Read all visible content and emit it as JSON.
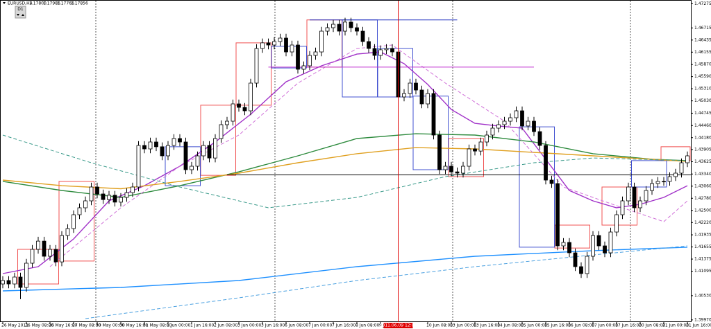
{
  "header": {
    "symbol": "EURUSD,H4",
    "quote": [
      "1.17800",
      "1.17986",
      "1.17766",
      "1.17856"
    ],
    "period_button": "D1"
  },
  "chart_data": {
    "type": "candlestick",
    "open": [
      1.408,
      1.4088,
      1.408,
      1.4096,
      1.4072,
      1.4128,
      1.416,
      1.4179,
      1.4144,
      1.416,
      1.4131,
      1.4192,
      1.4208,
      1.424,
      1.4256,
      1.4272,
      1.4304,
      1.4288,
      1.4275,
      1.4285,
      1.4269,
      1.428,
      1.4291,
      1.4304,
      1.44,
      1.4392,
      1.4408,
      1.4397,
      1.4376,
      1.44,
      1.4416,
      1.4408,
      1.4344,
      1.4352,
      1.4376,
      1.44,
      1.4371,
      1.4416,
      1.4448,
      1.4456,
      1.4496,
      1.4488,
      1.448,
      1.4544,
      1.4624,
      1.4637,
      1.4632,
      1.464,
      1.4648,
      1.4616,
      1.4632,
      1.4576,
      1.4584,
      1.4608,
      1.4616,
      1.4664,
      1.4672,
      1.468,
      1.4664,
      1.4685,
      1.4672,
      1.4664,
      1.464,
      1.4624,
      1.4608,
      1.4621,
      1.4624,
      1.4616,
      1.4512,
      1.452,
      1.4544,
      1.4528,
      1.4496,
      1.452,
      1.4424,
      1.4344,
      1.4352,
      1.4339,
      1.4336,
      1.4352,
      1.4392,
      1.4387,
      1.4408,
      1.4424,
      1.444,
      1.4448,
      1.4456,
      1.4464,
      1.448,
      1.4445,
      1.4456,
      1.4432,
      1.44,
      1.432,
      1.4312,
      1.4168,
      1.4176,
      1.4152,
      1.412,
      1.4104,
      1.4144,
      1.4192,
      1.4168,
      1.4152,
      1.42,
      1.424,
      1.4272,
      1.4304,
      1.4256,
      1.4272,
      1.4296,
      1.4312,
      1.4317,
      1.4317,
      1.4328,
      1.4336,
      1.436
    ],
    "high": [
      1.4098,
      1.4098,
      1.4106,
      1.4106,
      1.4138,
      1.417,
      1.4189,
      1.4189,
      1.417,
      1.417,
      1.4202,
      1.4218,
      1.425,
      1.4266,
      1.4282,
      1.4314,
      1.4314,
      1.4298,
      1.4295,
      1.4295,
      1.429,
      1.4301,
      1.4314,
      1.441,
      1.441,
      1.4418,
      1.4418,
      1.4407,
      1.441,
      1.4426,
      1.4426,
      1.4418,
      1.4362,
      1.4386,
      1.441,
      1.441,
      1.4426,
      1.4458,
      1.4466,
      1.4506,
      1.4506,
      1.4498,
      1.4554,
      1.4634,
      1.4647,
      1.4647,
      1.465,
      1.4658,
      1.4658,
      1.4642,
      1.4642,
      1.4594,
      1.4618,
      1.4626,
      1.4674,
      1.4682,
      1.469,
      1.469,
      1.4695,
      1.4695,
      1.4682,
      1.4674,
      1.465,
      1.4634,
      1.4631,
      1.4634,
      1.4634,
      1.4626,
      1.453,
      1.4554,
      1.4554,
      1.4538,
      1.453,
      1.453,
      1.4434,
      1.4362,
      1.4362,
      1.4349,
      1.4362,
      1.4402,
      1.4402,
      1.4418,
      1.4434,
      1.445,
      1.4458,
      1.4466,
      1.4474,
      1.449,
      1.449,
      1.4466,
      1.4466,
      1.4442,
      1.441,
      1.433,
      1.4322,
      1.4186,
      1.4186,
      1.4162,
      1.413,
      1.4154,
      1.4202,
      1.4202,
      1.4178,
      1.421,
      1.425,
      1.4282,
      1.4314,
      1.4314,
      1.4282,
      1.4306,
      1.4322,
      1.4327,
      1.4327,
      1.4338,
      1.4346,
      1.437,
      1.4386
    ],
    "low": [
      1.407,
      1.407,
      1.407,
      1.4045,
      1.4062,
      1.4118,
      1.415,
      1.4134,
      1.4134,
      1.4121,
      1.4121,
      1.4182,
      1.4198,
      1.423,
      1.4246,
      1.4262,
      1.4278,
      1.4265,
      1.4265,
      1.4259,
      1.4259,
      1.427,
      1.4281,
      1.4294,
      1.4382,
      1.4382,
      1.4387,
      1.4366,
      1.4366,
      1.439,
      1.4398,
      1.4334,
      1.4334,
      1.4342,
      1.4366,
      1.4361,
      1.4361,
      1.4406,
      1.4438,
      1.4446,
      1.4478,
      1.447,
      1.447,
      1.4534,
      1.4614,
      1.4622,
      1.4622,
      1.463,
      1.4606,
      1.4606,
      1.4566,
      1.4566,
      1.4574,
      1.4598,
      1.4606,
      1.4654,
      1.4662,
      1.4654,
      1.4654,
      1.4662,
      1.4654,
      1.463,
      1.4614,
      1.4598,
      1.4598,
      1.4611,
      1.4606,
      1.4502,
      1.4502,
      1.451,
      1.4518,
      1.4486,
      1.4486,
      1.4414,
      1.4334,
      1.4334,
      1.4329,
      1.4326,
      1.4326,
      1.4342,
      1.4377,
      1.4377,
      1.4398,
      1.4414,
      1.443,
      1.4438,
      1.4446,
      1.4454,
      1.4435,
      1.4435,
      1.4422,
      1.439,
      1.431,
      1.4302,
      1.4158,
      1.4158,
      1.4142,
      1.411,
      1.4094,
      1.4094,
      1.4134,
      1.4158,
      1.4142,
      1.4142,
      1.419,
      1.423,
      1.4262,
      1.4246,
      1.4246,
      1.4262,
      1.4286,
      1.4302,
      1.4307,
      1.4307,
      1.4318,
      1.4326,
      1.435
    ],
    "close": [
      1.4088,
      1.408,
      1.4096,
      1.4072,
      1.4128,
      1.416,
      1.4179,
      1.4144,
      1.416,
      1.4131,
      1.4192,
      1.4208,
      1.424,
      1.4256,
      1.4272,
      1.4304,
      1.4288,
      1.4275,
      1.4285,
      1.4269,
      1.428,
      1.4291,
      1.4304,
      1.44,
      1.4392,
      1.4408,
      1.4397,
      1.4376,
      1.44,
      1.4416,
      1.4408,
      1.4344,
      1.4352,
      1.4376,
      1.44,
      1.4371,
      1.4416,
      1.4448,
      1.4456,
      1.4496,
      1.4488,
      1.448,
      1.4544,
      1.4624,
      1.4637,
      1.4632,
      1.464,
      1.4648,
      1.4616,
      1.4632,
      1.4576,
      1.4584,
      1.4608,
      1.4616,
      1.4664,
      1.4672,
      1.468,
      1.4664,
      1.4685,
      1.4672,
      1.4664,
      1.464,
      1.4624,
      1.4608,
      1.4621,
      1.4624,
      1.4616,
      1.4512,
      1.452,
      1.4544,
      1.4528,
      1.4496,
      1.452,
      1.4424,
      1.4344,
      1.4352,
      1.4339,
      1.4336,
      1.4352,
      1.4392,
      1.4387,
      1.4408,
      1.4424,
      1.444,
      1.4448,
      1.4456,
      1.4464,
      1.448,
      1.4445,
      1.4456,
      1.4432,
      1.44,
      1.432,
      1.4312,
      1.4168,
      1.4176,
      1.4152,
      1.412,
      1.4104,
      1.4144,
      1.4192,
      1.4168,
      1.4152,
      1.42,
      1.424,
      1.4272,
      1.4304,
      1.4256,
      1.4272,
      1.4296,
      1.4312,
      1.4317,
      1.4317,
      1.4328,
      1.4336,
      1.436,
      1.4376
    ],
    "ylim": [
      1.3992,
      1.4736
    ],
    "yticks": [
      1.47275,
      1.46715,
      1.46435,
      1.46155,
      {
        "value": 1.4587,
        "label": "1.45870"
      },
      {
        "value": 1.4559,
        "label": "1.45590"
      },
      {
        "value": 1.4531,
        "label": "1.45310"
      },
      {
        "value": 1.4503,
        "label": "1.45030"
      },
      1.44745,
      {
        "value": 1.4446,
        "label": "1.44460"
      },
      {
        "value": 1.4418,
        "label": "1.44180"
      },
      1.43905,
      1.43625,
      {
        "value": 1.4334,
        "label": "1.43340"
      },
      {
        "value": 1.4306,
        "label": "1.43060"
      },
      {
        "value": 1.4278,
        "label": "1.42780"
      },
      {
        "value": 1.425,
        "label": "1.42500"
      },
      {
        "value": 1.4222,
        "label": "1.42220"
      },
      1.41935,
      1.41655,
      1.41375,
      1.41095,
      {
        "value": 1.4053,
        "label": "1.40530"
      },
      {
        "value": 1.3997,
        "label": "1.39970"
      }
    ],
    "xticks": [
      {
        "value": 0,
        "label": "26 May 2011"
      },
      {
        "value": 4,
        "label": "26 May 08:00"
      },
      {
        "value": 8,
        "label": "26 May 16:00"
      },
      {
        "value": 12,
        "label": "27 May 08:00"
      },
      {
        "value": 16,
        "label": "30 May 00:00"
      },
      {
        "value": 20,
        "label": "30 May 16:00"
      },
      {
        "value": 24,
        "label": "31 May 08:00"
      },
      {
        "value": 28,
        "label": "1 Jun 00:00"
      },
      {
        "value": 32,
        "label": "1 Jun 16:00"
      },
      {
        "value": 36,
        "label": "2 Jun 08:00"
      },
      {
        "value": 40,
        "label": "3 Jun 00:00"
      },
      {
        "value": 44,
        "label": "3 Jun 16:00"
      },
      {
        "value": 48,
        "label": "6 Jun 08:00"
      },
      {
        "value": 52,
        "label": "7 Jun 00:00"
      },
      {
        "value": 56,
        "label": "7 Jun 16:00"
      },
      {
        "value": 60,
        "label": "8 Jun 08:00"
      },
      {
        "value": 64,
        "label": "9 Jun 00:00"
      },
      {
        "value": 72,
        "label": "10 Jun 08:00"
      },
      {
        "value": 76,
        "label": "13 Jun 00:00"
      },
      {
        "value": 80,
        "label": "13 Jun 16:00"
      },
      {
        "value": 84,
        "label": "14 Jun 08:00"
      },
      {
        "value": 88,
        "label": "15 Jun 00:00"
      },
      {
        "value": 92,
        "label": "15 Jun 16:00"
      },
      {
        "value": 96,
        "label": "16 Jun 08:00"
      },
      {
        "value": 100,
        "label": "17 Jun 00:00"
      },
      {
        "value": 104,
        "label": "17 Jun 16:00"
      },
      {
        "value": 108,
        "label": "20 Jun 08:00"
      },
      {
        "value": 112,
        "label": "21 Jun 00:00"
      },
      {
        "value": 116,
        "label": "21 Jun 16:00"
      }
    ],
    "cursor": {
      "x": 67,
      "label": "2011.06.09 12:00",
      "color": "#e00000"
    },
    "bull_color": "#ffffff",
    "bear_color": "#000000",
    "lines": [
      {
        "color": "#a030c8",
        "dashed": false,
        "x": [
          0,
          6,
          12,
          18,
          24,
          30,
          36,
          42,
          48,
          54,
          60,
          64,
          68,
          72,
          76,
          80,
          84,
          88,
          92,
          96,
          100,
          104,
          108,
          112,
          116
        ],
        "values": [
          1.4104,
          1.412,
          1.4184,
          1.4272,
          1.4307,
          1.4352,
          1.4408,
          1.4472,
          1.4547,
          1.4584,
          1.4611,
          1.4616,
          1.4589,
          1.4541,
          1.4483,
          1.4451,
          1.4445,
          1.444,
          1.4368,
          1.4296,
          1.4272,
          1.4256,
          1.4264,
          1.428,
          1.4307
        ]
      },
      {
        "color": "#2e8b3e",
        "dashed": false,
        "x": [
          0,
          10,
          20,
          30,
          40,
          50,
          60,
          70,
          80,
          90,
          100,
          110,
          116
        ],
        "values": [
          1.4317,
          1.4296,
          1.428,
          1.4307,
          1.4339,
          1.4376,
          1.4416,
          1.4427,
          1.4424,
          1.4408,
          1.4381,
          1.4368,
          1.4365
        ]
      },
      {
        "color": "#e0a020",
        "dashed": false,
        "x": [
          0,
          10,
          20,
          30,
          40,
          50,
          60,
          70,
          80,
          90,
          100,
          110,
          116
        ],
        "values": [
          1.432,
          1.4307,
          1.43,
          1.4317,
          1.4336,
          1.436,
          1.4381,
          1.4395,
          1.4392,
          1.4384,
          1.4376,
          1.4368,
          1.4363
        ]
      },
      {
        "color": "#1e90ff",
        "dashed": false,
        "x": [
          0,
          20,
          40,
          60,
          80,
          100,
          116
        ],
        "values": [
          1.4064,
          1.4072,
          1.4088,
          1.412,
          1.4144,
          1.4157,
          1.4165
        ]
      },
      {
        "color": "#3a9a8a",
        "dashed": true,
        "x": [
          0,
          15,
          30,
          45,
          60,
          75,
          90,
          100,
          116
        ],
        "values": [
          1.4424,
          1.436,
          1.4304,
          1.4256,
          1.428,
          1.4328,
          1.436,
          1.4371,
          1.4365
        ]
      },
      {
        "color": "#d070d8",
        "dashed": true,
        "x": [
          8,
          20,
          30,
          40,
          50,
          60,
          66,
          75,
          85,
          95,
          105,
          112,
          116
        ],
        "values": [
          1.412,
          1.4256,
          1.4352,
          1.4424,
          1.4544,
          1.4624,
          1.4632,
          1.4544,
          1.4456,
          1.4304,
          1.4256,
          1.4224,
          1.4272
        ]
      },
      {
        "color": "#4aa0e0",
        "dashed": true,
        "x": [
          14,
          40,
          60,
          80,
          100,
          116
        ],
        "values": [
          1.4,
          1.4048,
          1.4088,
          1.412,
          1.4147,
          1.4168
        ]
      }
    ],
    "hlines": [
      {
        "color": "#000000",
        "value": 1.4332,
        "from": 38,
        "to": 117
      },
      {
        "color": "#c030d0",
        "value": 1.4581,
        "from": 45,
        "to": 90
      },
      {
        "color": "#2030c0",
        "value": 1.469,
        "from": 52,
        "to": 77
      }
    ],
    "boxes": [
      {
        "color": "#f05050",
        "from": 3,
        "to": 9,
        "low": 1.408,
        "high": 1.416
      },
      {
        "color": "#f05050",
        "from": 10,
        "to": 15,
        "low": 1.4133,
        "high": 1.4317
      },
      {
        "color": "#f05050",
        "from": 34,
        "to": 39,
        "low": 1.4331,
        "high": 1.4493
      },
      {
        "color": "#f05050",
        "from": 40,
        "to": 45,
        "low": 1.4493,
        "high": 1.4637
      },
      {
        "color": "#f05050",
        "from": 52,
        "to": 57,
        "low": 1.4581,
        "high": 1.469
      },
      {
        "color": "#f05050",
        "from": 76,
        "to": 81,
        "low": 1.4328,
        "high": 1.4416
      },
      {
        "color": "#f05050",
        "from": 94,
        "to": 99,
        "low": 1.4163,
        "high": 1.4216
      },
      {
        "color": "#f05050",
        "from": 102,
        "to": 107,
        "low": 1.4216,
        "high": 1.4304
      },
      {
        "color": "#f05050",
        "from": 112,
        "to": 116,
        "low": 1.4365,
        "high": 1.4397
      },
      {
        "color": "#4050d0",
        "from": 28,
        "to": 33,
        "low": 1.4307,
        "high": 1.4397
      },
      {
        "color": "#4050d0",
        "from": 46,
        "to": 51,
        "low": 1.4579,
        "high": 1.4629
      },
      {
        "color": "#4050d0",
        "from": 58,
        "to": 63,
        "low": 1.4512,
        "high": 1.469
      },
      {
        "color": "#4050d0",
        "from": 64,
        "to": 69,
        "low": 1.4512,
        "high": 1.4624
      },
      {
        "color": "#4050d0",
        "from": 70,
        "to": 75,
        "low": 1.4344,
        "high": 1.4514
      },
      {
        "color": "#4050d0",
        "from": 88,
        "to": 93,
        "low": 1.4165,
        "high": 1.4443
      },
      {
        "color": "#4050d0",
        "from": 107,
        "to": 112,
        "low": 1.4304,
        "high": 1.4365
      }
    ]
  }
}
